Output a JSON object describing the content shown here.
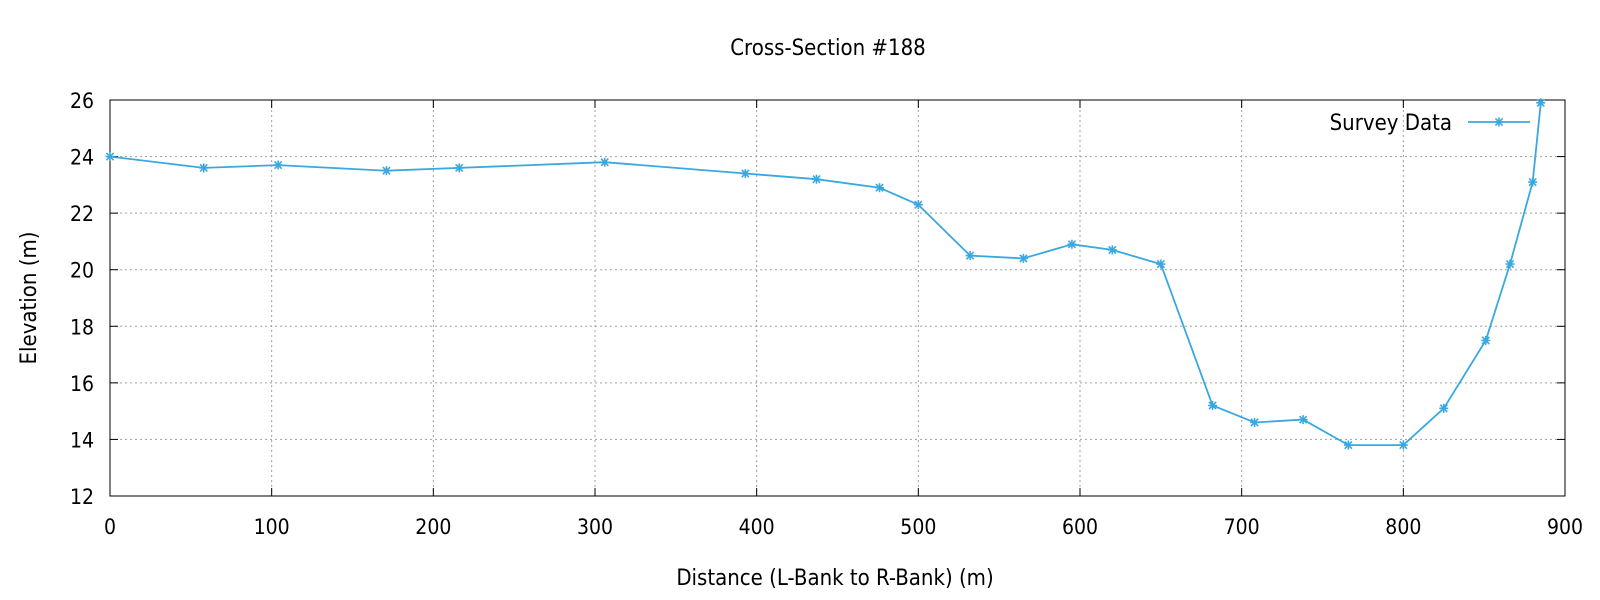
{
  "chart_data": {
    "type": "line",
    "title": "Cross-Section #188",
    "xlabel": "Distance (L-Bank to R-Bank) (m)",
    "ylabel": "Elevation (m)",
    "xlim": [
      0,
      900
    ],
    "ylim": [
      12,
      26
    ],
    "xticks": [
      0,
      100,
      200,
      300,
      400,
      500,
      600,
      700,
      800,
      900
    ],
    "yticks": [
      12,
      14,
      16,
      18,
      20,
      22,
      24,
      26
    ],
    "grid": true,
    "legend_position": "top-right",
    "series": [
      {
        "name": "Survey Data",
        "color": "#3aa8e0",
        "marker": "asterisk",
        "x": [
          0,
          58,
          104,
          171,
          216,
          306,
          393,
          437,
          476,
          500,
          532,
          565,
          595,
          620,
          650,
          682,
          708,
          738,
          766,
          800,
          825,
          851,
          866,
          880,
          885
        ],
        "y": [
          24.0,
          23.6,
          23.7,
          23.5,
          23.6,
          23.8,
          23.4,
          23.2,
          22.9,
          22.3,
          20.5,
          20.4,
          20.9,
          20.7,
          20.2,
          15.2,
          14.6,
          14.7,
          13.8,
          13.8,
          15.1,
          17.5,
          20.2,
          23.1,
          25.9
        ]
      }
    ]
  }
}
